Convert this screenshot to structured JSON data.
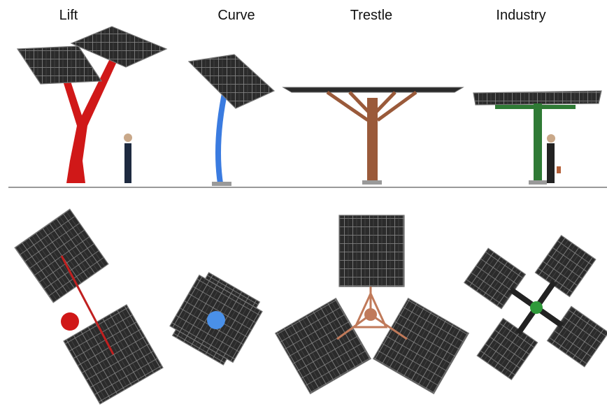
{
  "labels": [
    "Lift",
    "Curve",
    "Trestle",
    "Industry"
  ]
}
